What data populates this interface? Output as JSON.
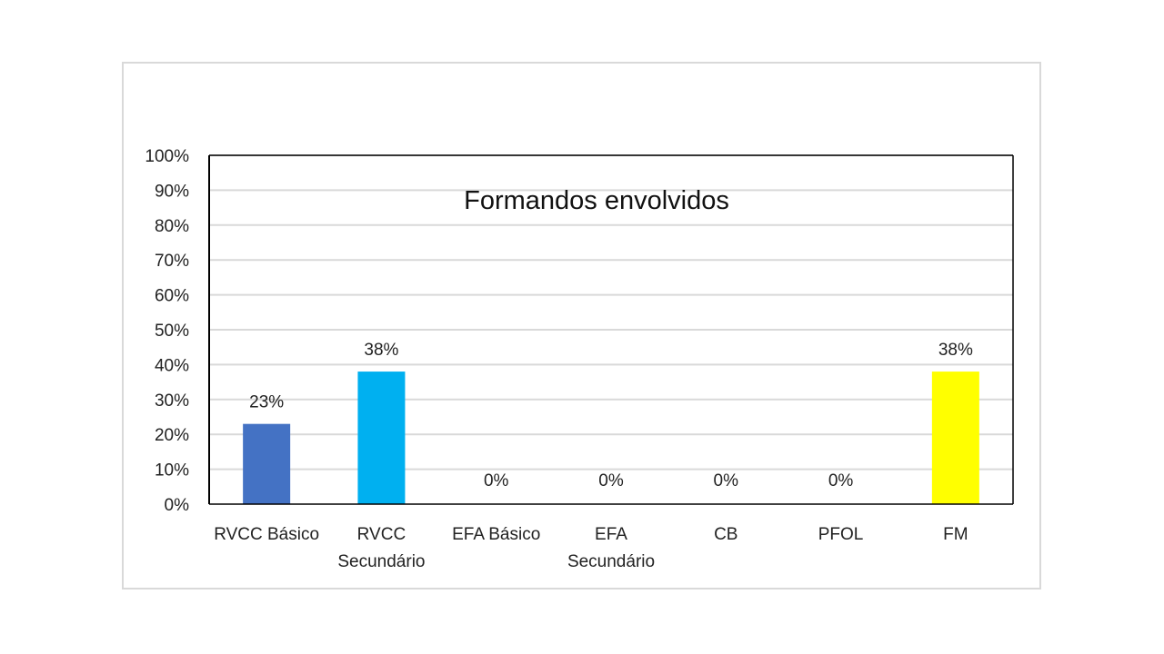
{
  "chart_data": {
    "type": "bar",
    "title": "Formandos envolvidos",
    "categories": [
      [
        "RVCC Básico"
      ],
      [
        "RVCC",
        "Secundário"
      ],
      [
        "EFA Básico"
      ],
      [
        "EFA",
        "Secundário"
      ],
      [
        "CB"
      ],
      [
        "PFOL"
      ],
      [
        "FM"
      ]
    ],
    "values": [
      23,
      38,
      0,
      0,
      0,
      0,
      38
    ],
    "data_labels": [
      "23%",
      "38%",
      "0%",
      "0%",
      "0%",
      "0%",
      "38%"
    ],
    "bar_colors": [
      "#4472C4",
      "#00B0F0",
      "#4472C4",
      "#4472C4",
      "#4472C4",
      "#4472C4",
      "#FFFF00"
    ],
    "ylim": [
      0,
      100
    ],
    "yticks": [
      0,
      10,
      20,
      30,
      40,
      50,
      60,
      70,
      80,
      90,
      100
    ],
    "ytick_labels": [
      "0%",
      "10%",
      "20%",
      "30%",
      "40%",
      "50%",
      "60%",
      "70%",
      "80%",
      "90%",
      "100%"
    ],
    "grid": true,
    "gridline_color": "#d9d9d9",
    "axis_color": "#000000"
  }
}
